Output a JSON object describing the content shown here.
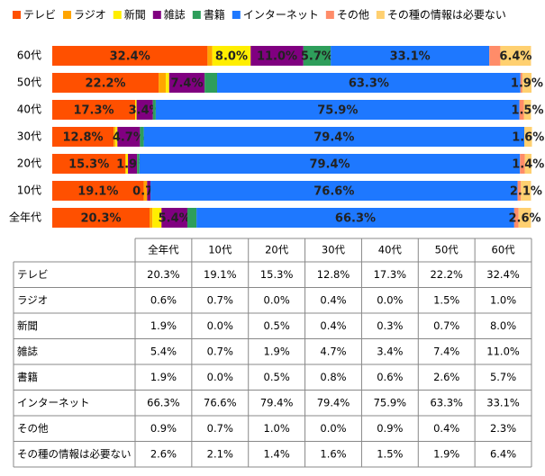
{
  "chart_data": {
    "type": "stacked-bar-horizontal",
    "categories": [
      "60代",
      "50代",
      "40代",
      "30代",
      "20代",
      "10代",
      "全年代"
    ],
    "xlim": [
      0,
      100
    ],
    "legend": "top",
    "series": [
      {
        "name": "テレビ",
        "color": "#ff5000",
        "values": [
          32.4,
          22.2,
          17.3,
          12.8,
          15.3,
          19.1,
          20.3
        ],
        "value_labels": [
          "32.4%",
          "22.2%",
          "17.3%",
          "12.8%",
          "15.3%",
          "19.1%",
          "20.3%"
        ]
      },
      {
        "name": "ラジオ",
        "color": "#ffa500",
        "values": [
          1.0,
          1.5,
          0.0,
          0.4,
          0.0,
          0.7,
          0.6
        ],
        "value_labels": [
          null,
          null,
          null,
          null,
          null,
          null,
          null
        ]
      },
      {
        "name": "新聞",
        "color": "#ffee00",
        "values": [
          8.0,
          0.7,
          0.3,
          0.4,
          0.5,
          0.0,
          1.9
        ],
        "value_labels": [
          "8.0%",
          null,
          null,
          null,
          null,
          null,
          null
        ]
      },
      {
        "name": "雑誌",
        "color": "#800080",
        "values": [
          11.0,
          7.4,
          3.4,
          4.7,
          1.9,
          0.7,
          5.4
        ],
        "value_labels": [
          "11.0%",
          "7.4%",
          "3.4%",
          "4.7%",
          "1.9%",
          "0.7%",
          "5.4%"
        ]
      },
      {
        "name": "書籍",
        "color": "#2e9e5b",
        "values": [
          5.7,
          2.6,
          0.6,
          0.8,
          0.5,
          0.0,
          1.9
        ],
        "value_labels": [
          "5.7%",
          null,
          null,
          null,
          null,
          null,
          null
        ]
      },
      {
        "name": "インターネット",
        "color": "#1e78ff",
        "values": [
          33.1,
          63.3,
          75.9,
          79.4,
          79.4,
          76.6,
          66.3
        ],
        "value_labels": [
          "33.1%",
          "63.3%",
          "75.9%",
          "79.4%",
          "79.4%",
          "76.6%",
          "66.3%"
        ]
      },
      {
        "name": "その他",
        "color": "#ff8c69",
        "values": [
          2.3,
          0.4,
          0.9,
          0.0,
          1.0,
          0.7,
          0.9
        ],
        "value_labels": [
          null,
          null,
          null,
          null,
          null,
          null,
          null
        ]
      },
      {
        "name": "その種の情報は必要ない",
        "color": "#ffd070",
        "values": [
          6.4,
          1.9,
          1.5,
          1.6,
          1.4,
          2.1,
          2.6
        ],
        "value_labels": [
          "6.4%",
          "1.9%",
          "1.5%",
          "1.6%",
          "1.4%",
          "2.1%",
          "2.6%"
        ]
      }
    ]
  },
  "table": {
    "header": [
      "全年代",
      "10代",
      "20代",
      "30代",
      "40代",
      "50代",
      "60代"
    ],
    "rows": [
      {
        "label": "テレビ",
        "cells": [
          "20.3%",
          "19.1%",
          "15.3%",
          "12.8%",
          "17.3%",
          "22.2%",
          "32.4%"
        ]
      },
      {
        "label": "ラジオ",
        "cells": [
          "0.6%",
          "0.7%",
          "0.0%",
          "0.4%",
          "0.0%",
          "1.5%",
          "1.0%"
        ]
      },
      {
        "label": "新聞",
        "cells": [
          "1.9%",
          "0.0%",
          "0.5%",
          "0.4%",
          "0.3%",
          "0.7%",
          "8.0%"
        ]
      },
      {
        "label": "雑誌",
        "cells": [
          "5.4%",
          "0.7%",
          "1.9%",
          "4.7%",
          "3.4%",
          "7.4%",
          "11.0%"
        ]
      },
      {
        "label": "書籍",
        "cells": [
          "1.9%",
          "0.0%",
          "0.5%",
          "0.8%",
          "0.6%",
          "2.6%",
          "5.7%"
        ]
      },
      {
        "label": "インターネット",
        "cells": [
          "66.3%",
          "76.6%",
          "79.4%",
          "79.4%",
          "75.9%",
          "63.3%",
          "33.1%"
        ]
      },
      {
        "label": "その他",
        "cells": [
          "0.9%",
          "0.7%",
          "1.0%",
          "0.0%",
          "0.9%",
          "0.4%",
          "2.3%"
        ]
      },
      {
        "label": "その種の情報は必要ない",
        "cells": [
          "2.6%",
          "2.1%",
          "1.4%",
          "1.6%",
          "1.5%",
          "1.9%",
          "6.4%"
        ]
      }
    ]
  }
}
